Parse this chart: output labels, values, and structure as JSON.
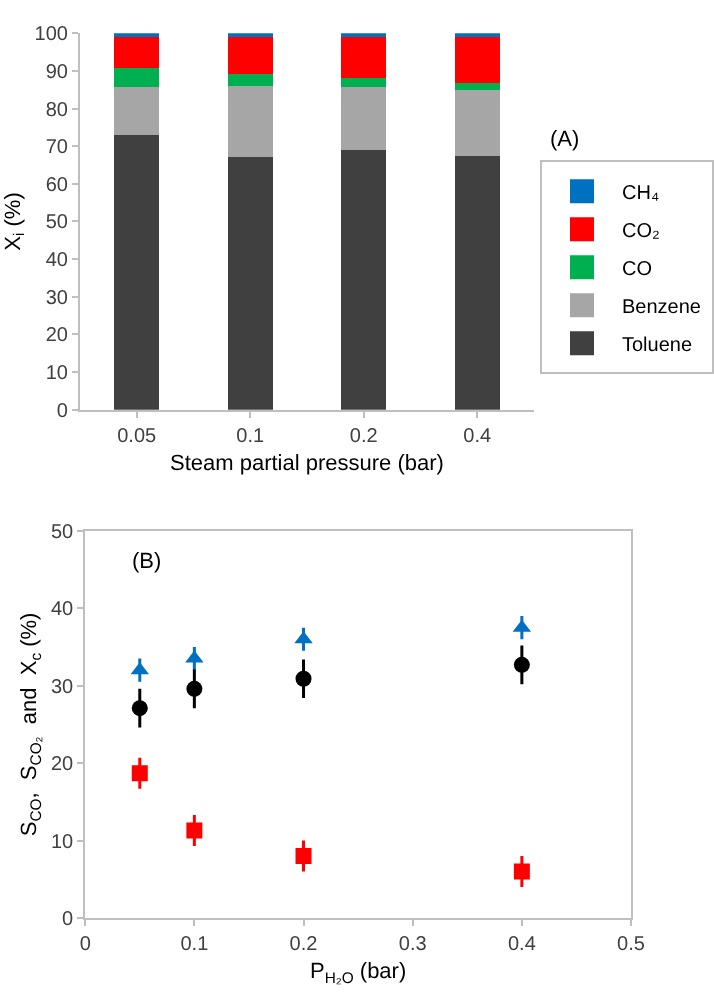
{
  "chart_data": [
    {
      "type": "bar",
      "stacked": true,
      "categories": [
        "0.05",
        "0.1",
        "0.2",
        "0.4"
      ],
      "xlabel": "Steam partial pressure (bar)",
      "ylabel": "X$_{i}$ (%)",
      "ylim": [
        0,
        100
      ],
      "yticks": [
        0,
        10,
        20,
        30,
        40,
        50,
        60,
        70,
        80,
        90,
        100
      ],
      "legend": "right",
      "annotations": [
        "(A)"
      ],
      "series": [
        {
          "name": "Toluene",
          "color": "#404040",
          "values": [
            73,
            67,
            69,
            67.3
          ]
        },
        {
          "name": "Benzene",
          "color": "#a6a6a6",
          "values": [
            12.8,
            19,
            16.8,
            17.5
          ]
        },
        {
          "name": "CO",
          "color": "#00b050",
          "values": [
            5,
            3.3,
            2.2,
            2
          ]
        },
        {
          "name": "CO₂",
          "color": "#ff0000",
          "values": [
            8.6,
            10,
            11.4,
            12.5
          ]
        },
        {
          "name": "CH₄",
          "color": "#0070c0",
          "values": [
            0.6,
            0.7,
            0.6,
            0.7
          ]
        }
      ]
    },
    {
      "type": "scatter",
      "xlabel": "P$_{H₂O}$ (bar)",
      "ylabel": "S$_{CO}$,  S$_{CO₂}$  and  X$_{c}$ (%)",
      "xlim": [
        0,
        0.5
      ],
      "xticks": [
        0,
        0.1,
        0.2,
        0.3,
        0.4,
        0.5
      ],
      "ylim": [
        0,
        50
      ],
      "yticks": [
        0,
        10,
        20,
        30,
        40,
        50
      ],
      "legend": false,
      "annotations": [
        "(B)"
      ],
      "x": [
        0.05,
        0.1,
        0.2,
        0.4
      ],
      "series": [
        {
          "color": "#0070c0",
          "marker": "triangle",
          "values": [
            32,
            33.5,
            36,
            37.5
          ],
          "errors": [
            1.5,
            1.5,
            1.5,
            1.5
          ]
        },
        {
          "color": "#000000",
          "marker": "circle",
          "values": [
            27.1,
            29.6,
            30.9,
            32.7
          ],
          "errors": [
            2.5,
            2.5,
            2.5,
            2.5
          ]
        },
        {
          "color": "#ff0000",
          "marker": "square",
          "values": [
            18.7,
            11.3,
            8,
            6
          ],
          "errors": [
            2,
            2,
            2,
            2
          ]
        }
      ]
    }
  ]
}
